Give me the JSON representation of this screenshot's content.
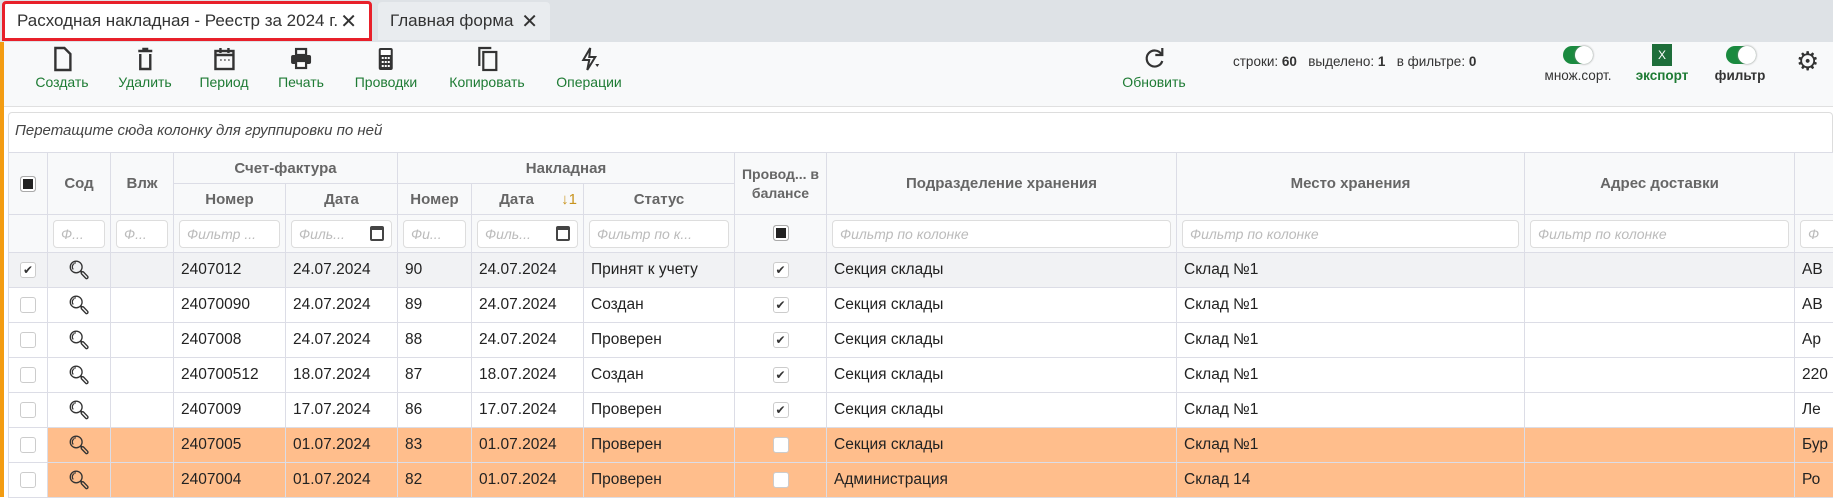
{
  "tabs": [
    {
      "label": "Расходная накладная - Реестр за 2024 г.",
      "active": true
    },
    {
      "label": "Главная форма",
      "active": false
    }
  ],
  "toolbar": {
    "buttons": [
      {
        "label": "Создать",
        "icon": "file-icon"
      },
      {
        "label": "Удалить",
        "icon": "trash-icon"
      },
      {
        "label": "Период",
        "icon": "calendar-icon"
      },
      {
        "label": "Печать",
        "icon": "printer-icon"
      },
      {
        "label": "Проводки",
        "icon": "calculator-icon"
      },
      {
        "label": "Копировать",
        "icon": "copy-icon"
      },
      {
        "label": "Операции",
        "icon": "lightning-icon"
      }
    ],
    "refresh": "Обновить",
    "stats": {
      "rows_label": "строки:",
      "rows": "60",
      "selected_label": "выделено:",
      "selected": "1",
      "filter_label": "в фильтре:",
      "filter": "0"
    },
    "multisort": "множ.сорт.",
    "multisort_on": true,
    "export": "экспорт",
    "export_icon_text": "X",
    "filter_toggle": "фильтр",
    "filter_on": true
  },
  "group_panel": "Перетащите сюда колонку для группировки по ней",
  "colors": {
    "accent": "#1e7b34",
    "highlight_row": "#ffbe8c",
    "active_tab_border": "#e8202a"
  },
  "grid": {
    "groups": {
      "invoice": "Счет-фактура",
      "waybill": "Накладная"
    },
    "columns": {
      "content": "Сод",
      "attach": "Влж",
      "inv_num": "Номер",
      "inv_date": "Дата",
      "wb_num": "Номер",
      "wb_date": "Дата",
      "sort": "↓1",
      "status": "Статус",
      "posted": "Провод... в балансе",
      "division": "Подразделение хранения",
      "place": "Место хранения",
      "address": "Адрес доставки"
    },
    "filters": {
      "content": "Ф...",
      "attach": "Ф...",
      "inv_num": "Фильтр ...",
      "inv_date": "Филь...",
      "wb_num": "Фи...",
      "wb_date": "Филь...",
      "status": "Фильтр по к...",
      "division": "Фильтр по колонке",
      "place": "Фильтр по колонке",
      "address": "Фильтр по колонке",
      "last": "Ф"
    },
    "rows": [
      {
        "checked": true,
        "inv_num": "2407012",
        "inv_date": "24.07.2024",
        "wb_num": "90",
        "wb_date": "24.07.2024",
        "status": "Принят к учету",
        "posted": true,
        "division": "Секция склады",
        "place": "Склад №1",
        "address": "",
        "last": "АВ",
        "style": "sel"
      },
      {
        "checked": false,
        "inv_num": "24070090",
        "inv_date": "24.07.2024",
        "wb_num": "89",
        "wb_date": "24.07.2024",
        "status": "Создан",
        "posted": true,
        "division": "Секция склады",
        "place": "Склад №1",
        "address": "",
        "last": "АВ",
        "style": ""
      },
      {
        "checked": false,
        "inv_num": "2407008",
        "inv_date": "24.07.2024",
        "wb_num": "88",
        "wb_date": "24.07.2024",
        "status": "Проверен",
        "posted": true,
        "division": "Секция склады",
        "place": "Склад №1",
        "address": "",
        "last": "Ар",
        "style": ""
      },
      {
        "checked": false,
        "inv_num": "240700512",
        "inv_date": "18.07.2024",
        "wb_num": "87",
        "wb_date": "18.07.2024",
        "status": "Создан",
        "posted": true,
        "division": "Секция склады",
        "place": "Склад №1",
        "address": "",
        "last": "220",
        "style": ""
      },
      {
        "checked": false,
        "inv_num": "2407009",
        "inv_date": "17.07.2024",
        "wb_num": "86",
        "wb_date": "17.07.2024",
        "status": "Проверен",
        "posted": true,
        "division": "Секция склады",
        "place": "Склад №1",
        "address": "",
        "last": "Ле",
        "style": ""
      },
      {
        "checked": false,
        "inv_num": "2407005",
        "inv_date": "01.07.2024",
        "wb_num": "83",
        "wb_date": "01.07.2024",
        "status": "Проверен",
        "posted": false,
        "division": "Секция склады",
        "place": "Склад №1",
        "address": "",
        "last": "Бур",
        "style": "hl"
      },
      {
        "checked": false,
        "inv_num": "2407004",
        "inv_date": "01.07.2024",
        "wb_num": "82",
        "wb_date": "01.07.2024",
        "status": "Проверен",
        "posted": false,
        "division": "Администрация",
        "place": "Склад 14",
        "address": "",
        "last": "Ро",
        "style": "hl"
      }
    ]
  }
}
